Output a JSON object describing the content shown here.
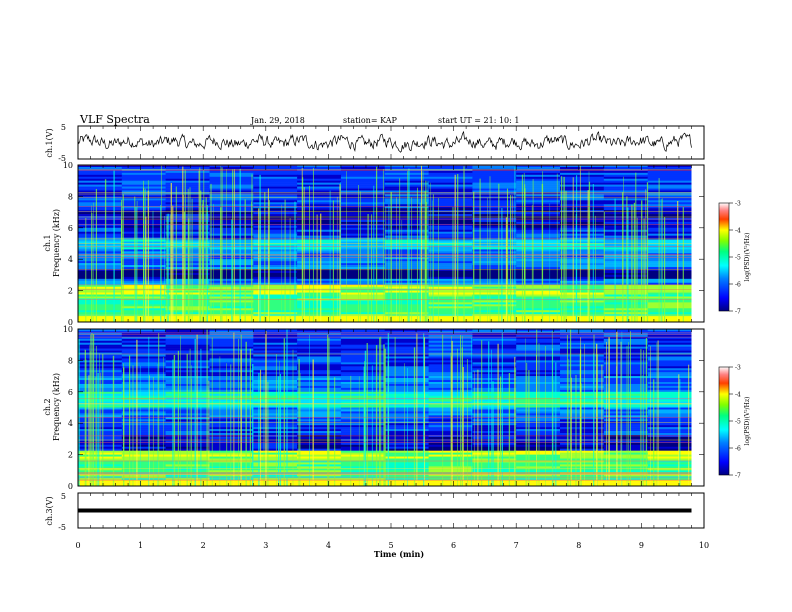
{
  "header": {
    "title": "VLF Spectra",
    "date": "Jan. 29, 2018",
    "station": "station= KAP",
    "start": "start UT =  21: 10: 1"
  },
  "chart_data": [
    {
      "type": "line",
      "panel": "ch.1 waveform",
      "ylabel": "ch.1(V)",
      "ylim": [
        -5,
        5
      ],
      "yticks": [
        "5",
        "-5"
      ],
      "xlim": [
        0,
        10
      ],
      "note": "noisy signal roughly between -2 and 2 V over 0 to 9.8 min"
    },
    {
      "type": "heatmap",
      "panel": "ch.1 spectrogram",
      "ylabel_top": "ch.1",
      "ylabel": "Frequency (kHz)",
      "ylim": [
        0,
        10
      ],
      "yticks": [
        "0",
        "2",
        "4",
        "6",
        "8",
        "10"
      ],
      "xlim": [
        0,
        10
      ],
      "colorbar": {
        "label": "log(PSD)(V²/Hz)",
        "range": [
          -7,
          -3
        ],
        "ticks": [
          "-3",
          "-4",
          "-5",
          "-6",
          "-7"
        ]
      }
    },
    {
      "type": "heatmap",
      "panel": "ch.2 spectrogram",
      "ylabel_top": "ch.2",
      "ylabel": "Frequency (kHz)",
      "ylim": [
        0,
        10
      ],
      "yticks": [
        "0",
        "2",
        "4",
        "6",
        "8",
        "10"
      ],
      "xlim": [
        0,
        10
      ],
      "colorbar": {
        "label": "log(PSD)(V²/Hz)",
        "range": [
          -7,
          -3
        ],
        "ticks": [
          "-3",
          "-4",
          "-5",
          "-6",
          "-7"
        ]
      }
    },
    {
      "type": "line",
      "panel": "ch.3 waveform",
      "ylabel": "ch.3(V)",
      "ylim": [
        -5,
        5
      ],
      "yticks": [
        "5",
        "-5"
      ],
      "xlim": [
        0,
        10
      ],
      "values_note": "constant at about 0 V from 0 to 9.8 min",
      "level": 0
    }
  ],
  "xaxis": {
    "label": "Time (min)",
    "ticks": [
      "0",
      "1",
      "2",
      "3",
      "4",
      "5",
      "6",
      "7",
      "8",
      "9",
      "10"
    ],
    "data_end": 9.8
  },
  "colors": {
    "background": "#ffffff",
    "ink": "#000000",
    "colormap": [
      "#000080",
      "#0000ff",
      "#0080ff",
      "#00ffff",
      "#00ff80",
      "#80ff00",
      "#ffff00",
      "#ff8000",
      "#ff0000",
      "#ffffff"
    ]
  }
}
